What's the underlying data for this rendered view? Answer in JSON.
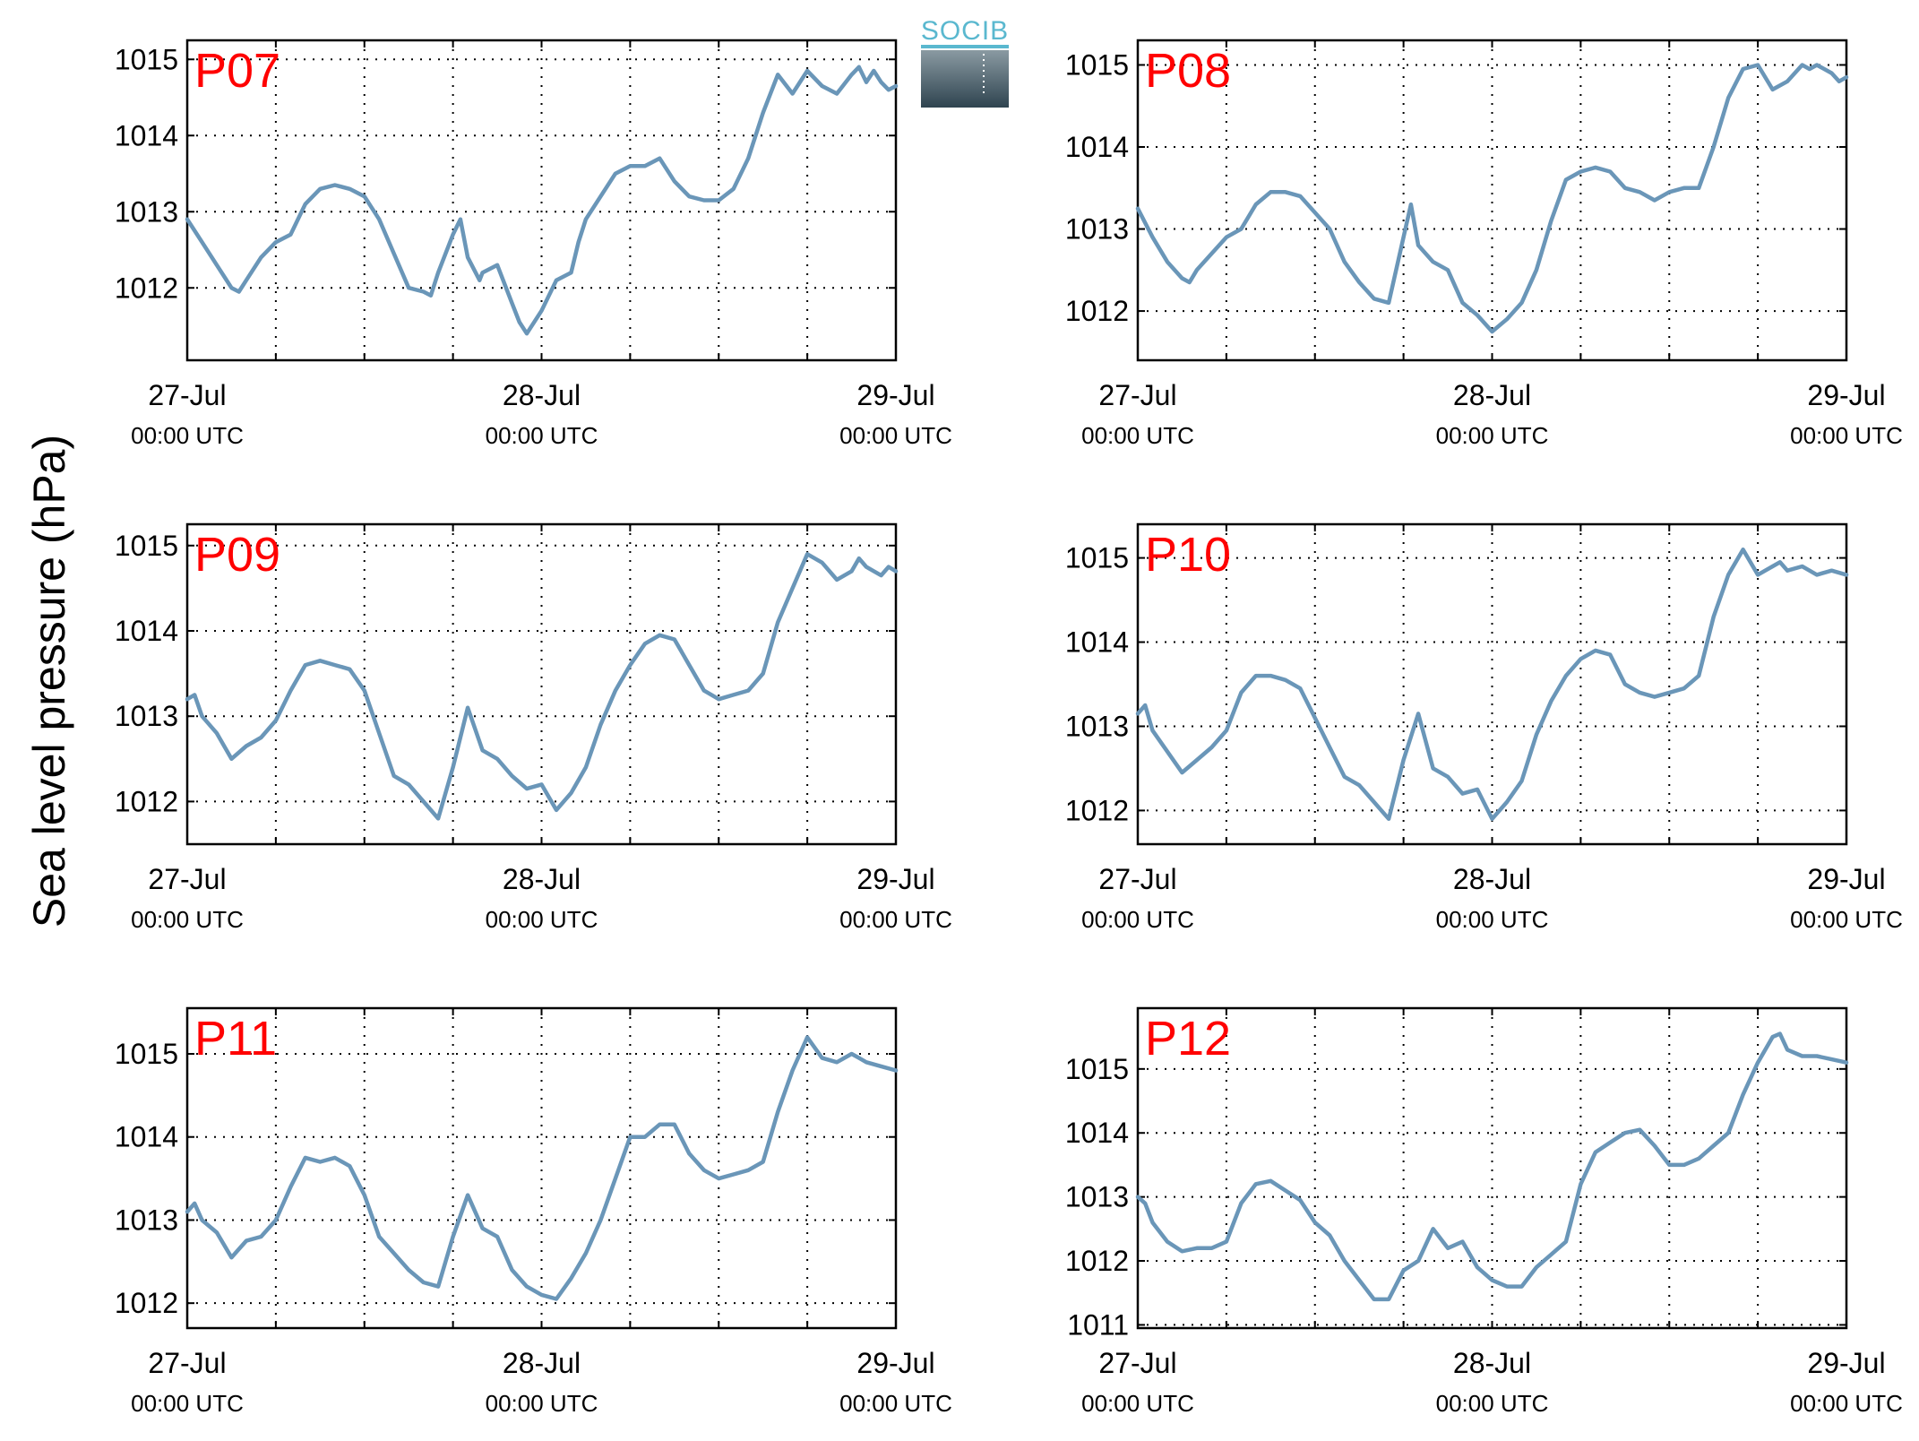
{
  "figure": {
    "ylabel": "Sea level pressure (hPa)",
    "logo_text": "SOCIB"
  },
  "colors": {
    "line": "#6a96b8",
    "title": "#ff0000",
    "grid": "#000000"
  },
  "chart_data": [
    {
      "type": "line",
      "title": "P07",
      "ylim": [
        1011.05,
        1015.25
      ],
      "yticks": [
        1012,
        1013,
        1014,
        1015
      ],
      "xlim": [
        0,
        48
      ],
      "xtick_labels": [
        {
          "x": 0,
          "date": "27-Jul",
          "time": "00:00 UTC"
        },
        {
          "x": 24,
          "date": "28-Jul",
          "time": "00:00 UTC"
        },
        {
          "x": 48,
          "date": "29-Jul",
          "time": "00:00 UTC"
        }
      ],
      "grid": true,
      "series": [
        {
          "x": [
            0,
            1,
            2,
            3,
            3.5,
            4,
            5,
            6,
            7,
            7.5,
            8,
            9,
            10,
            11,
            12,
            13,
            14,
            15,
            16,
            16.5,
            17,
            18,
            18.5,
            19,
            19.8,
            20,
            21,
            22,
            22.5,
            23,
            24,
            25,
            26,
            26.5,
            27,
            28,
            29,
            30,
            31,
            32,
            33,
            34,
            35,
            36,
            37,
            38,
            39,
            40,
            41,
            42,
            43,
            44,
            45,
            45.5,
            46,
            46.5,
            47,
            47.5,
            48
          ],
          "y": [
            1012.9,
            1012.6,
            1012.3,
            1012.0,
            1011.95,
            1012.1,
            1012.4,
            1012.6,
            1012.7,
            1012.9,
            1013.1,
            1013.3,
            1013.35,
            1013.3,
            1013.2,
            1012.9,
            1012.45,
            1012.0,
            1011.95,
            1011.9,
            1012.2,
            1012.7,
            1012.9,
            1012.4,
            1012.1,
            1012.2,
            1012.3,
            1011.8,
            1011.55,
            1011.4,
            1011.7,
            1012.1,
            1012.2,
            1012.6,
            1012.9,
            1013.2,
            1013.5,
            1013.6,
            1013.6,
            1013.7,
            1013.4,
            1013.2,
            1013.15,
            1013.15,
            1013.3,
            1013.7,
            1014.3,
            1014.8,
            1014.55,
            1014.85,
            1014.65,
            1014.55,
            1014.8,
            1014.9,
            1014.7,
            1014.85,
            1014.7,
            1014.6,
            1014.65
          ]
        }
      ]
    },
    {
      "type": "line",
      "title": "P08",
      "ylim": [
        1011.4,
        1015.3
      ],
      "yticks": [
        1012,
        1013,
        1014,
        1015
      ],
      "xlim": [
        0,
        48
      ],
      "xtick_labels": [
        {
          "x": 0,
          "date": "27-Jul",
          "time": "00:00 UTC"
        },
        {
          "x": 24,
          "date": "28-Jul",
          "time": "00:00 UTC"
        },
        {
          "x": 48,
          "date": "29-Jul",
          "time": "00:00 UTC"
        }
      ],
      "grid": true,
      "series": [
        {
          "x": [
            0,
            1,
            2,
            3,
            3.5,
            4,
            5,
            6,
            7,
            8,
            9,
            10,
            11,
            12,
            13,
            14,
            15,
            16,
            17,
            18,
            18.5,
            19,
            20,
            21,
            22,
            23,
            24,
            25,
            26,
            27,
            28,
            29,
            30,
            31,
            32,
            33,
            34,
            35,
            36,
            37,
            38,
            39,
            40,
            41,
            42,
            43,
            44,
            45,
            45.5,
            46,
            47,
            47.5,
            48
          ],
          "y": [
            1013.25,
            1012.9,
            1012.6,
            1012.4,
            1012.35,
            1012.5,
            1012.7,
            1012.9,
            1013.0,
            1013.3,
            1013.45,
            1013.45,
            1013.4,
            1013.2,
            1013.0,
            1012.6,
            1012.35,
            1012.15,
            1012.1,
            1012.9,
            1013.3,
            1012.8,
            1012.6,
            1012.5,
            1012.1,
            1011.95,
            1011.75,
            1011.9,
            1012.1,
            1012.5,
            1013.1,
            1013.6,
            1013.7,
            1013.75,
            1013.7,
            1013.5,
            1013.45,
            1013.35,
            1013.45,
            1013.5,
            1013.5,
            1014.0,
            1014.6,
            1014.95,
            1015.0,
            1014.7,
            1014.8,
            1015.0,
            1014.95,
            1015.0,
            1014.9,
            1014.8,
            1014.85
          ]
        }
      ]
    },
    {
      "type": "line",
      "title": "P09",
      "ylim": [
        1011.5,
        1015.25
      ],
      "yticks": [
        1012,
        1013,
        1014,
        1015
      ],
      "xlim": [
        0,
        48
      ],
      "xtick_labels": [
        {
          "x": 0,
          "date": "27-Jul",
          "time": "00:00 UTC"
        },
        {
          "x": 24,
          "date": "28-Jul",
          "time": "00:00 UTC"
        },
        {
          "x": 48,
          "date": "29-Jul",
          "time": "00:00 UTC"
        }
      ],
      "grid": true,
      "series": [
        {
          "x": [
            0,
            0.5,
            1,
            2,
            3,
            4,
            5,
            6,
            7,
            8,
            9,
            10,
            11,
            12,
            13,
            14,
            15,
            16,
            17,
            18,
            19,
            20,
            21,
            22,
            23,
            24,
            25,
            26,
            27,
            28,
            29,
            30,
            31,
            32,
            33,
            34,
            35,
            36,
            37,
            38,
            39,
            40,
            41,
            42,
            43,
            44,
            45,
            45.5,
            46,
            47,
            47.5,
            48
          ],
          "y": [
            1013.2,
            1013.25,
            1013.0,
            1012.8,
            1012.5,
            1012.65,
            1012.75,
            1012.95,
            1013.3,
            1013.6,
            1013.65,
            1013.6,
            1013.55,
            1013.3,
            1012.8,
            1012.3,
            1012.2,
            1012.0,
            1011.8,
            1012.4,
            1013.1,
            1012.6,
            1012.5,
            1012.3,
            1012.15,
            1012.2,
            1011.9,
            1012.1,
            1012.4,
            1012.9,
            1013.3,
            1013.6,
            1013.85,
            1013.95,
            1013.9,
            1013.6,
            1013.3,
            1013.2,
            1013.25,
            1013.3,
            1013.5,
            1014.1,
            1014.5,
            1014.9,
            1014.8,
            1014.6,
            1014.7,
            1014.85,
            1014.75,
            1014.65,
            1014.75,
            1014.7
          ]
        }
      ]
    },
    {
      "type": "line",
      "title": "P10",
      "ylim": [
        1011.6,
        1015.4
      ],
      "yticks": [
        1012,
        1013,
        1014,
        1015
      ],
      "xlim": [
        0,
        48
      ],
      "xtick_labels": [
        {
          "x": 0,
          "date": "27-Jul",
          "time": "00:00 UTC"
        },
        {
          "x": 24,
          "date": "28-Jul",
          "time": "00:00 UTC"
        },
        {
          "x": 48,
          "date": "29-Jul",
          "time": "00:00 UTC"
        }
      ],
      "grid": true,
      "series": [
        {
          "x": [
            0,
            0.5,
            1,
            2,
            3,
            4,
            5,
            6,
            7,
            8,
            9,
            10,
            11,
            12,
            13,
            14,
            15,
            16,
            17,
            18,
            19,
            20,
            21,
            22,
            23,
            24,
            25,
            26,
            27,
            28,
            29,
            30,
            31,
            32,
            33,
            34,
            35,
            36,
            37,
            38,
            39,
            40,
            41,
            42,
            43,
            43.5,
            44,
            45,
            46,
            47,
            48
          ],
          "y": [
            1013.15,
            1013.25,
            1012.95,
            1012.7,
            1012.45,
            1012.6,
            1012.75,
            1012.95,
            1013.4,
            1013.6,
            1013.6,
            1013.55,
            1013.45,
            1013.1,
            1012.75,
            1012.4,
            1012.3,
            1012.1,
            1011.9,
            1012.6,
            1013.15,
            1012.5,
            1012.4,
            1012.2,
            1012.25,
            1011.9,
            1012.1,
            1012.35,
            1012.9,
            1013.3,
            1013.6,
            1013.8,
            1013.9,
            1013.85,
            1013.5,
            1013.4,
            1013.35,
            1013.4,
            1013.45,
            1013.6,
            1014.3,
            1014.8,
            1015.1,
            1014.8,
            1014.9,
            1014.95,
            1014.85,
            1014.9,
            1014.8,
            1014.85,
            1014.8
          ]
        }
      ]
    },
    {
      "type": "line",
      "title": "P11",
      "ylim": [
        1011.7,
        1015.55
      ],
      "yticks": [
        1012,
        1013,
        1014,
        1015
      ],
      "xlim": [
        0,
        48
      ],
      "xtick_labels": [
        {
          "x": 0,
          "date": "27-Jul",
          "time": "00:00 UTC"
        },
        {
          "x": 24,
          "date": "28-Jul",
          "time": "00:00 UTC"
        },
        {
          "x": 48,
          "date": "29-Jul",
          "time": "00:00 UTC"
        }
      ],
      "grid": true,
      "series": [
        {
          "x": [
            0,
            0.5,
            1,
            2,
            3,
            4,
            5,
            6,
            7,
            8,
            9,
            10,
            11,
            12,
            13,
            14,
            15,
            16,
            17,
            18,
            19,
            20,
            21,
            22,
            23,
            24,
            25,
            26,
            27,
            28,
            29,
            30,
            31,
            32,
            33,
            34,
            35,
            36,
            37,
            38,
            39,
            40,
            41,
            42,
            43,
            44,
            45,
            45.5,
            46,
            47,
            48
          ],
          "y": [
            1013.1,
            1013.2,
            1013.0,
            1012.85,
            1012.55,
            1012.75,
            1012.8,
            1013.0,
            1013.4,
            1013.75,
            1013.7,
            1013.75,
            1013.65,
            1013.3,
            1012.8,
            1012.6,
            1012.4,
            1012.25,
            1012.2,
            1012.8,
            1013.3,
            1012.9,
            1012.8,
            1012.4,
            1012.2,
            1012.1,
            1012.05,
            1012.3,
            1012.6,
            1013.0,
            1013.5,
            1014.0,
            1014.0,
            1014.15,
            1014.15,
            1013.8,
            1013.6,
            1013.5,
            1013.55,
            1013.6,
            1013.7,
            1014.3,
            1014.8,
            1015.2,
            1014.95,
            1014.9,
            1015.0,
            1014.95,
            1014.9,
            1014.85,
            1014.8
          ]
        }
      ]
    },
    {
      "type": "line",
      "title": "P12",
      "ylim": [
        1010.95,
        1015.95
      ],
      "yticks": [
        1011,
        1012,
        1013,
        1014,
        1015
      ],
      "xlim": [
        0,
        48
      ],
      "xtick_labels": [
        {
          "x": 0,
          "date": "27-Jul",
          "time": "00:00 UTC"
        },
        {
          "x": 24,
          "date": "28-Jul",
          "time": "00:00 UTC"
        },
        {
          "x": 48,
          "date": "29-Jul",
          "time": "00:00 UTC"
        }
      ],
      "grid": true,
      "series": [
        {
          "x": [
            0,
            0.5,
            1,
            2,
            3,
            4,
            5,
            6,
            7,
            8,
            9,
            10,
            11,
            12,
            13,
            14,
            15,
            16,
            17,
            18,
            19,
            20,
            21,
            22,
            23,
            24,
            25,
            26,
            27,
            28,
            29,
            30,
            31,
            32,
            33,
            34,
            35,
            36,
            37,
            38,
            39,
            40,
            41,
            42,
            43,
            43.5,
            44,
            45,
            46,
            47,
            48
          ],
          "y": [
            1013.0,
            1012.9,
            1012.6,
            1012.3,
            1012.15,
            1012.2,
            1012.2,
            1012.3,
            1012.9,
            1013.2,
            1013.25,
            1013.1,
            1012.95,
            1012.6,
            1012.4,
            1012.0,
            1011.7,
            1011.4,
            1011.4,
            1011.85,
            1012.0,
            1012.5,
            1012.2,
            1012.3,
            1011.9,
            1011.7,
            1011.6,
            1011.6,
            1011.9,
            1012.1,
            1012.3,
            1013.2,
            1013.7,
            1013.85,
            1014.0,
            1014.05,
            1013.8,
            1013.5,
            1013.5,
            1013.6,
            1013.8,
            1014.0,
            1014.6,
            1015.1,
            1015.5,
            1015.55,
            1015.3,
            1015.2,
            1015.2,
            1015.15,
            1015.1
          ]
        }
      ]
    }
  ]
}
